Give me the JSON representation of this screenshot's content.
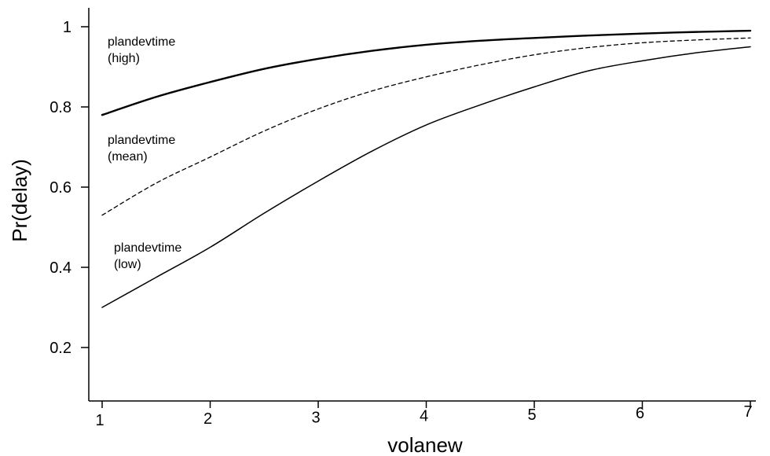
{
  "chart_data": {
    "type": "line",
    "title": "",
    "xlabel": "volanew",
    "ylabel": "Pr(delay)",
    "xlim": [
      1,
      7
    ],
    "ylim": [
      0.2,
      1
    ],
    "xticks": [
      1,
      2,
      3,
      4,
      5,
      6,
      7
    ],
    "xtick_labels": [
      "1",
      "2",
      "3",
      "4",
      "5",
      "6",
      "7"
    ],
    "yticks": [
      0.2,
      0.4,
      0.6,
      0.8,
      1
    ],
    "ytick_labels": [
      "0.2",
      "0.4",
      "0.6",
      "0.8",
      "1"
    ],
    "grid": false,
    "legend": "none",
    "series": [
      {
        "name": "plandevtime (high)",
        "label_lines": [
          "plandevtime",
          "(high)"
        ],
        "line_style": "solid-thick",
        "x": [
          1,
          1.5,
          2,
          2.5,
          3,
          3.5,
          4,
          4.5,
          5,
          5.5,
          6,
          6.5,
          7
        ],
        "y": [
          0.78,
          0.825,
          0.862,
          0.895,
          0.92,
          0.94,
          0.955,
          0.965,
          0.972,
          0.978,
          0.983,
          0.987,
          0.99
        ]
      },
      {
        "name": "plandevtime (mean)",
        "label_lines": [
          "plandevtime",
          "(mean)"
        ],
        "line_style": "dashed",
        "x": [
          1,
          1.5,
          2,
          2.5,
          3,
          3.5,
          4,
          4.5,
          5,
          5.5,
          6,
          6.5,
          7
        ],
        "y": [
          0.53,
          0.61,
          0.675,
          0.74,
          0.795,
          0.84,
          0.875,
          0.905,
          0.93,
          0.948,
          0.96,
          0.967,
          0.972
        ]
      },
      {
        "name": "plandevtime (low)",
        "label_lines": [
          "plandevtime",
          "(low)"
        ],
        "line_style": "solid",
        "x": [
          1,
          1.5,
          2,
          2.5,
          3,
          3.5,
          4,
          4.5,
          5,
          5.5,
          6,
          6.5,
          7
        ],
        "y": [
          0.3,
          0.375,
          0.45,
          0.535,
          0.615,
          0.69,
          0.755,
          0.805,
          0.85,
          0.89,
          0.915,
          0.935,
          0.95
        ]
      }
    ]
  }
}
